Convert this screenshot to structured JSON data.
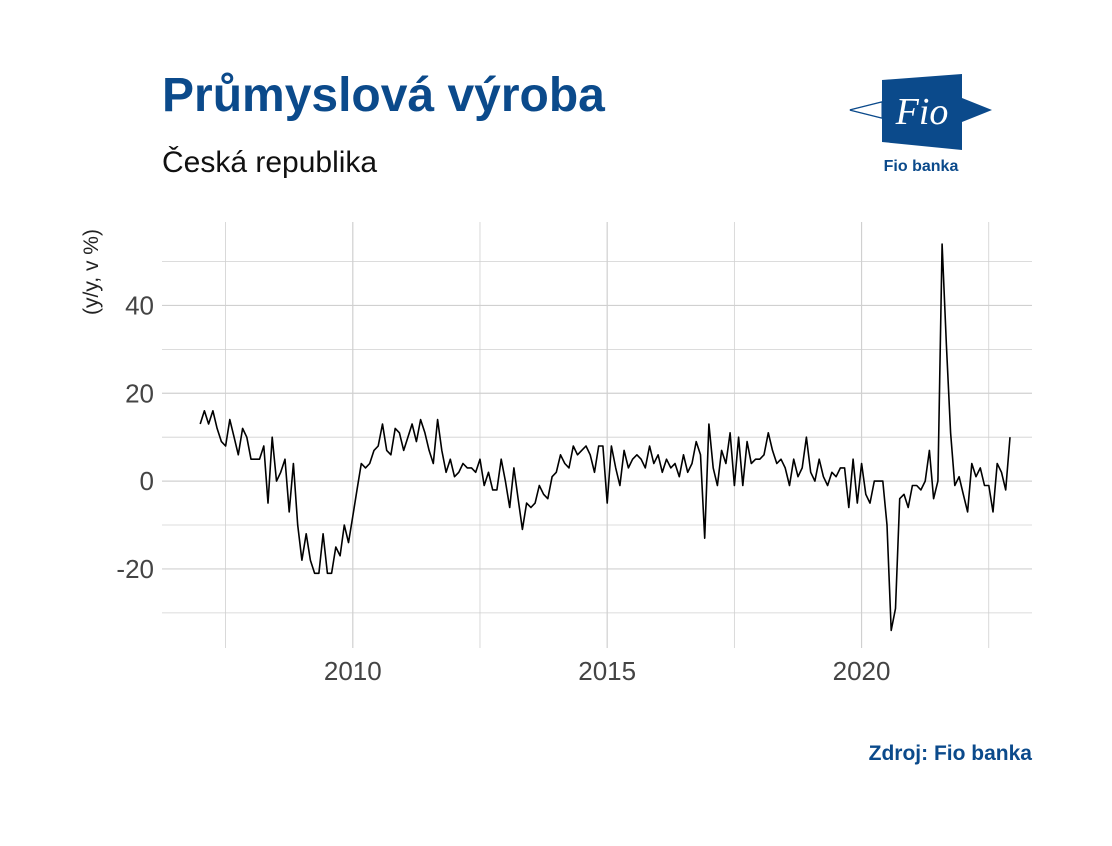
{
  "title": "Průmyslová výroba",
  "subtitle": "Česká republika",
  "logo": {
    "text": "Fio",
    "caption": "Fio banka",
    "color": "#0b4a8b"
  },
  "source": "Zdroj: Fio banka",
  "colors": {
    "accent": "#0b4a8b",
    "line": "#000000",
    "grid": "#d0d0d0"
  },
  "chart_data": {
    "type": "line",
    "ylabel": "(y/y, v %)",
    "xlabel": "",
    "xlim": [
      2006.25,
      2023.35
    ],
    "ylim": [
      -38,
      59
    ],
    "x_ticks": [
      2010,
      2015,
      2020
    ],
    "x_tick_labels": [
      "2010",
      "2015",
      "2020"
    ],
    "x_minor_grid": [
      2007.5,
      2012.5,
      2017.5,
      2022.5
    ],
    "y_ticks": [
      -20,
      0,
      20,
      40
    ],
    "y_tick_labels": [
      "-20",
      "0",
      "20",
      "40"
    ],
    "y_minor_grid": [
      -30,
      -10,
      10,
      30,
      50
    ],
    "grid": true,
    "legend": "none",
    "start_year": 2007,
    "start_month": 1,
    "values": [
      13,
      16,
      13,
      16,
      12,
      9,
      8,
      14,
      10,
      6,
      12,
      10,
      5,
      5,
      5,
      8,
      -5,
      10,
      0,
      2,
      5,
      -7,
      4,
      -10,
      -18,
      -12,
      -18,
      -21,
      -21,
      -12,
      -21,
      -21,
      -15,
      -17,
      -10,
      -14,
      -8,
      -2,
      4,
      3,
      4,
      7,
      8,
      13,
      7,
      6,
      12,
      11,
      7,
      10,
      13,
      9,
      14,
      11,
      7,
      4,
      14,
      7,
      2,
      5,
      1,
      2,
      4,
      3,
      3,
      2,
      5,
      -1,
      2,
      -2,
      -2,
      5,
      0,
      -6,
      3,
      -4,
      -11,
      -5,
      -6,
      -5,
      -1,
      -3,
      -4,
      1,
      2,
      6,
      4,
      3,
      8,
      6,
      7,
      8,
      6,
      2,
      8,
      8,
      -5,
      8,
      3,
      -1,
      7,
      3,
      5,
      6,
      5,
      3,
      8,
      4,
      6,
      2,
      5,
      3,
      4,
      1,
      6,
      2,
      4,
      9,
      6,
      -13,
      13,
      3,
      -1,
      7,
      4,
      11,
      -1,
      10,
      -1,
      9,
      4,
      5,
      5,
      6,
      11,
      7,
      4,
      5,
      3,
      -1,
      5,
      1,
      3,
      10,
      2,
      0,
      5,
      1,
      -1,
      2,
      1,
      3,
      3,
      -6,
      5,
      -5,
      4,
      -3,
      -5,
      0,
      0,
      0,
      -10,
      -34,
      -29,
      -4,
      -3,
      -6,
      -1,
      -1,
      -2,
      0,
      7,
      -4,
      0,
      54,
      31,
      11,
      -1,
      1,
      -3,
      -7,
      4,
      1,
      3,
      -1,
      -1,
      -7,
      4,
      2,
      -2,
      10
    ]
  }
}
